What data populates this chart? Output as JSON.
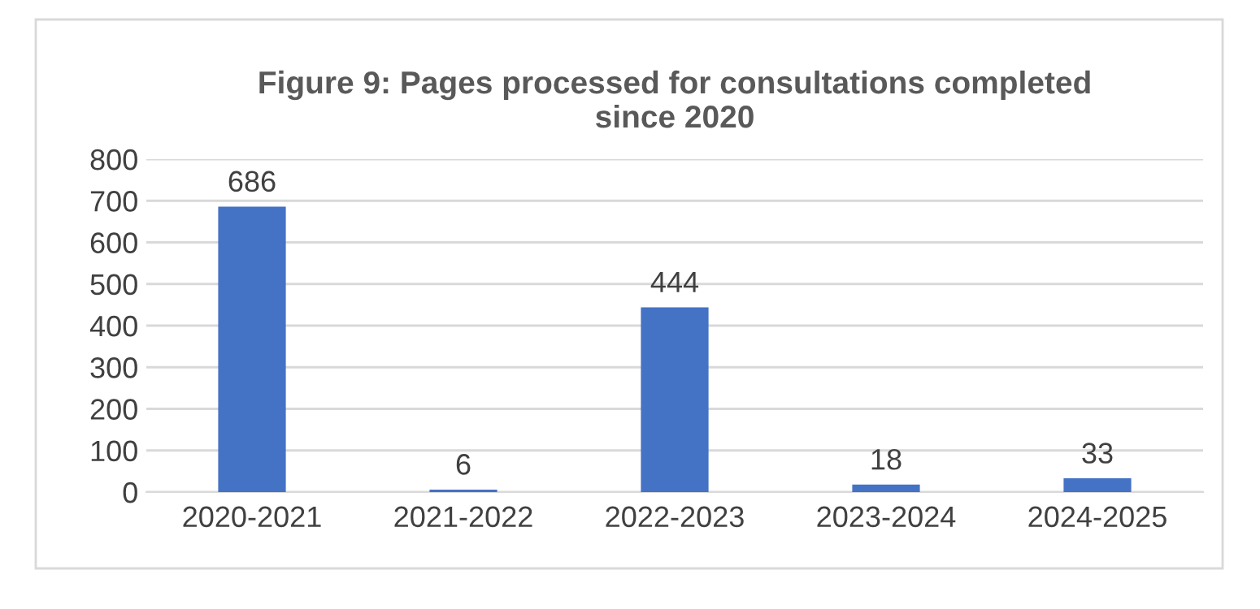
{
  "chart_data": {
    "type": "bar",
    "title": "Figure 9: Pages processed for consultations completed\nsince 2020",
    "categories": [
      "2020-2021",
      "2021-2022",
      "2022-2023",
      "2023-2024",
      "2024-2025"
    ],
    "values": [
      686,
      6,
      444,
      18,
      33
    ],
    "color": "#4472c4",
    "ylim": [
      0,
      800
    ],
    "yticks": [
      0,
      100,
      200,
      300,
      400,
      500,
      600,
      700,
      800
    ],
    "grid": "y",
    "data_labels": true
  }
}
